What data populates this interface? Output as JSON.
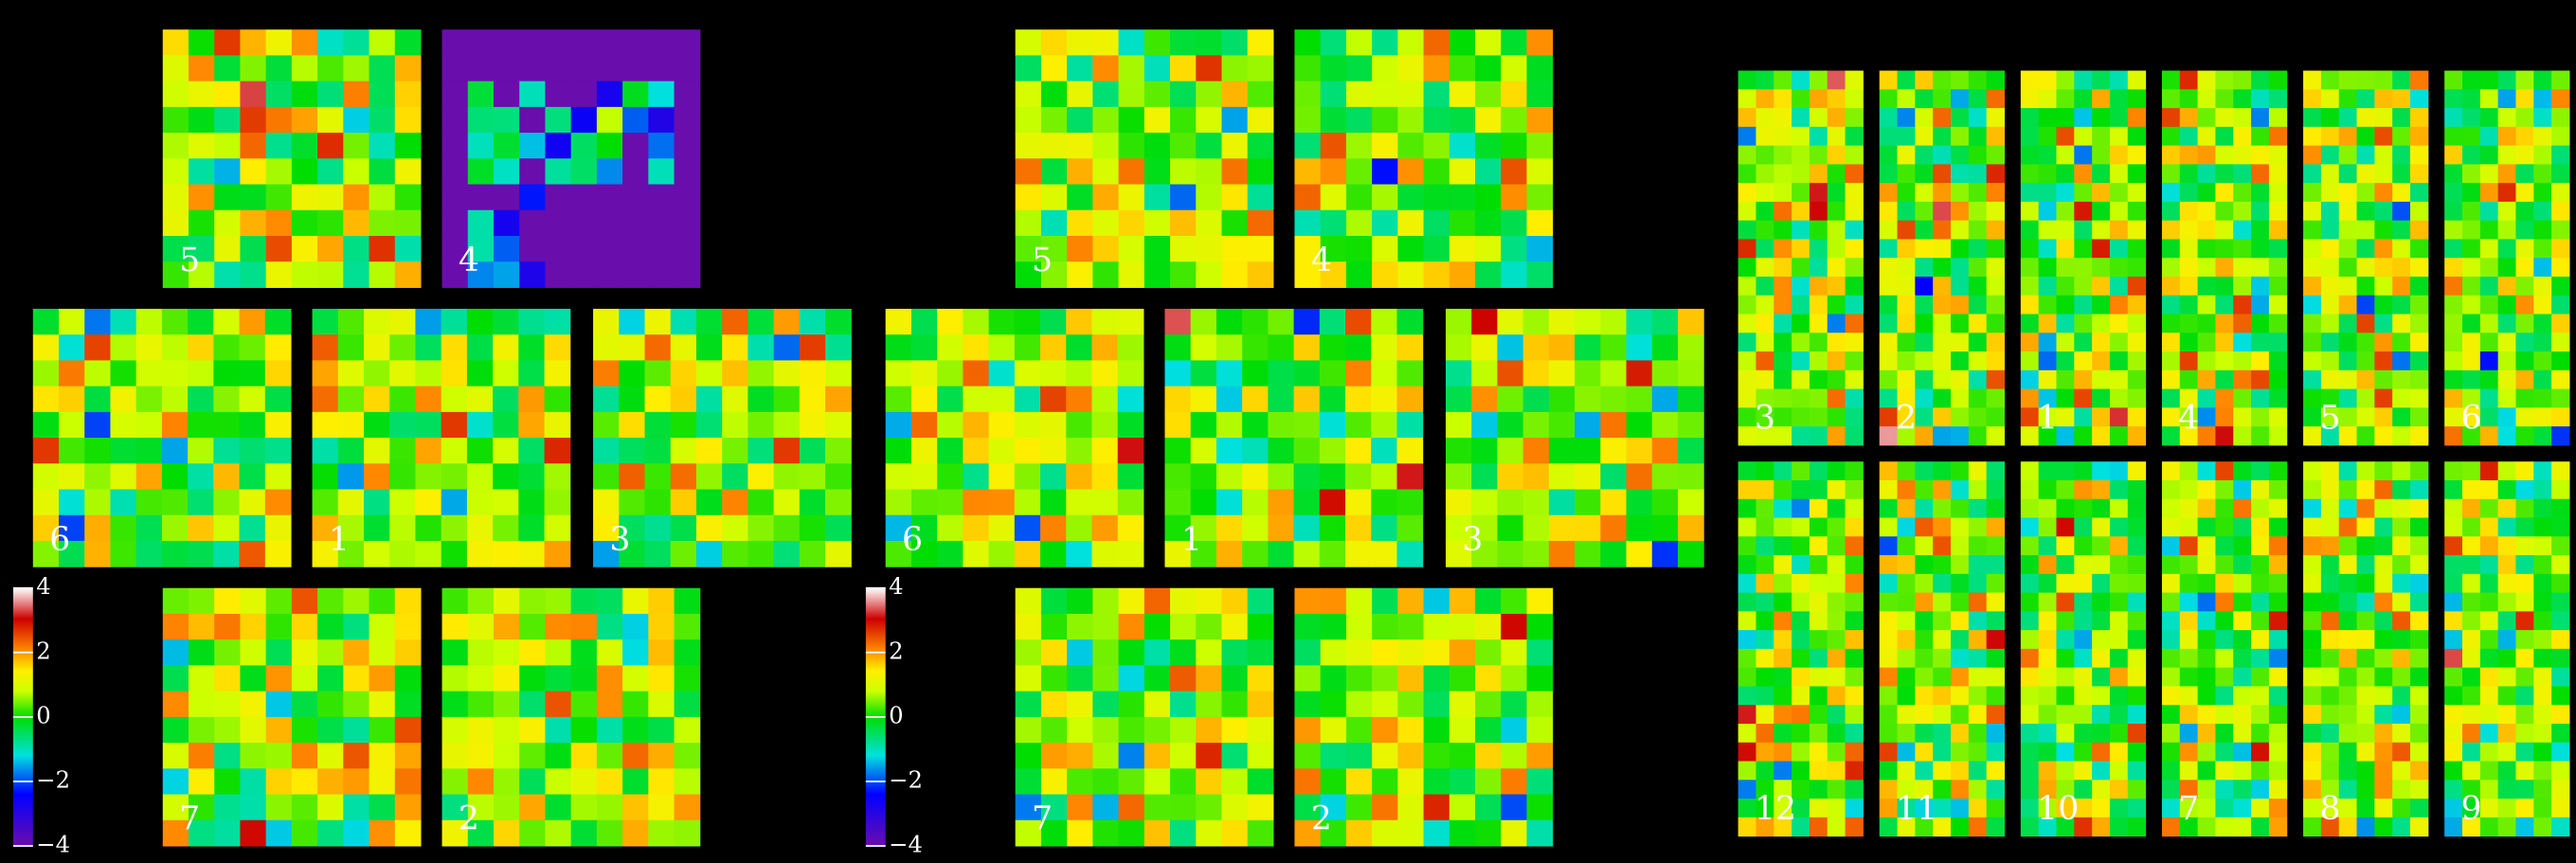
{
  "groups": [
    {
      "panels": [
        {
          "label": "5"
        },
        {
          "label": "4"
        },
        {
          "label": "6"
        },
        {
          "label": "1"
        },
        {
          "label": "3"
        },
        {
          "label": "7"
        },
        {
          "label": "2"
        }
      ],
      "colorbar": {
        "ticks": [
          4,
          2,
          0,
          {
            "value": -2,
            "label": "−2"
          },
          {
            "value": -4,
            "label": "−4"
          }
        ]
      }
    },
    {
      "panels": [
        {
          "label": "5"
        },
        {
          "label": "4"
        },
        {
          "label": "6"
        },
        {
          "label": "1"
        },
        {
          "label": "3"
        },
        {
          "label": "7"
        },
        {
          "label": "2"
        }
      ],
      "colorbar": {
        "ticks": [
          4,
          2,
          0,
          {
            "value": -2,
            "label": "−2"
          },
          {
            "value": -4,
            "label": "−4"
          }
        ]
      }
    }
  ],
  "right": {
    "panels": [
      {
        "label": "3"
      },
      {
        "label": "2"
      },
      {
        "label": "1"
      },
      {
        "label": "4"
      },
      {
        "label": "5"
      },
      {
        "label": "6"
      },
      {
        "label": "12"
      },
      {
        "label": "11"
      },
      {
        "label": "10"
      },
      {
        "label": "7"
      },
      {
        "label": "8"
      },
      {
        "label": "9"
      }
    ]
  }
}
